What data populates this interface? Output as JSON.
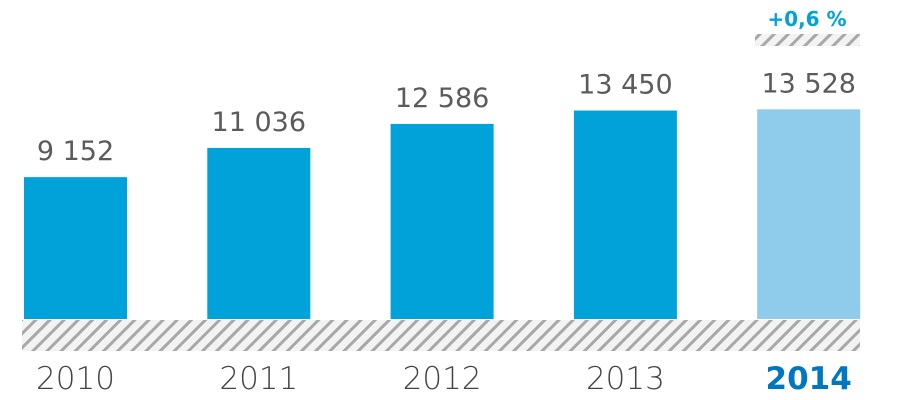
{
  "chart_data": {
    "type": "bar",
    "categories": [
      "2010",
      "2011",
      "2012",
      "2013",
      "2014"
    ],
    "values": [
      9152,
      11036,
      12586,
      13450,
      13528
    ],
    "value_labels": [
      "9 152",
      "11 036",
      "12 586",
      "13 450",
      "13 528"
    ],
    "highlight_index": 4,
    "change_label": "+0,6 %",
    "title": "",
    "xlabel": "",
    "ylabel": "",
    "grid": false,
    "legend": "none",
    "colors": {
      "bar": "#00A3D9",
      "bar_highlight": "#8FCBEA",
      "value_text": "#5B5B5B",
      "year_text": "#444444",
      "year_highlight_text": "#0077C0",
      "change_text": "#00A3D9",
      "hatch": "#A8A8A8",
      "hatch_bg": "#F3F3F3"
    }
  }
}
